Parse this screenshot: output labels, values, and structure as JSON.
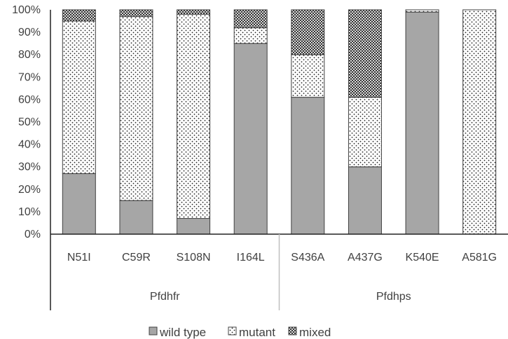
{
  "chart_data": {
    "type": "bar",
    "stacked": true,
    "categories": [
      "N51I",
      "C59R",
      "S108N",
      "I164L",
      "S436A",
      "A437G",
      "K540E",
      "A581G"
    ],
    "groups": [
      {
        "label": "Pfdhfr",
        "categories": [
          "N51I",
          "C59R",
          "S108N",
          "I164L"
        ]
      },
      {
        "label": "Pfdhps",
        "categories": [
          "S436A",
          "A437G",
          "K540E",
          "A581G"
        ]
      }
    ],
    "series": [
      {
        "name": "wild type",
        "color": "#a6a6a6",
        "pattern": "solid",
        "values": [
          27,
          15,
          7,
          85,
          61,
          30,
          99,
          0
        ]
      },
      {
        "name": "mutant",
        "color": "#ffffff",
        "pattern": "dots",
        "values": [
          68,
          82,
          91,
          7,
          19,
          31,
          1,
          100
        ]
      },
      {
        "name": "mixed",
        "color": "#595959",
        "pattern": "checker",
        "values": [
          5,
          3,
          2,
          8,
          20,
          39,
          0,
          0
        ]
      }
    ],
    "ylim": [
      0,
      100
    ],
    "yticks": [
      "0%",
      "10%",
      "20%",
      "30%",
      "40%",
      "50%",
      "60%",
      "70%",
      "80%",
      "90%",
      "100%"
    ],
    "grid": false,
    "legend": "bottom"
  }
}
